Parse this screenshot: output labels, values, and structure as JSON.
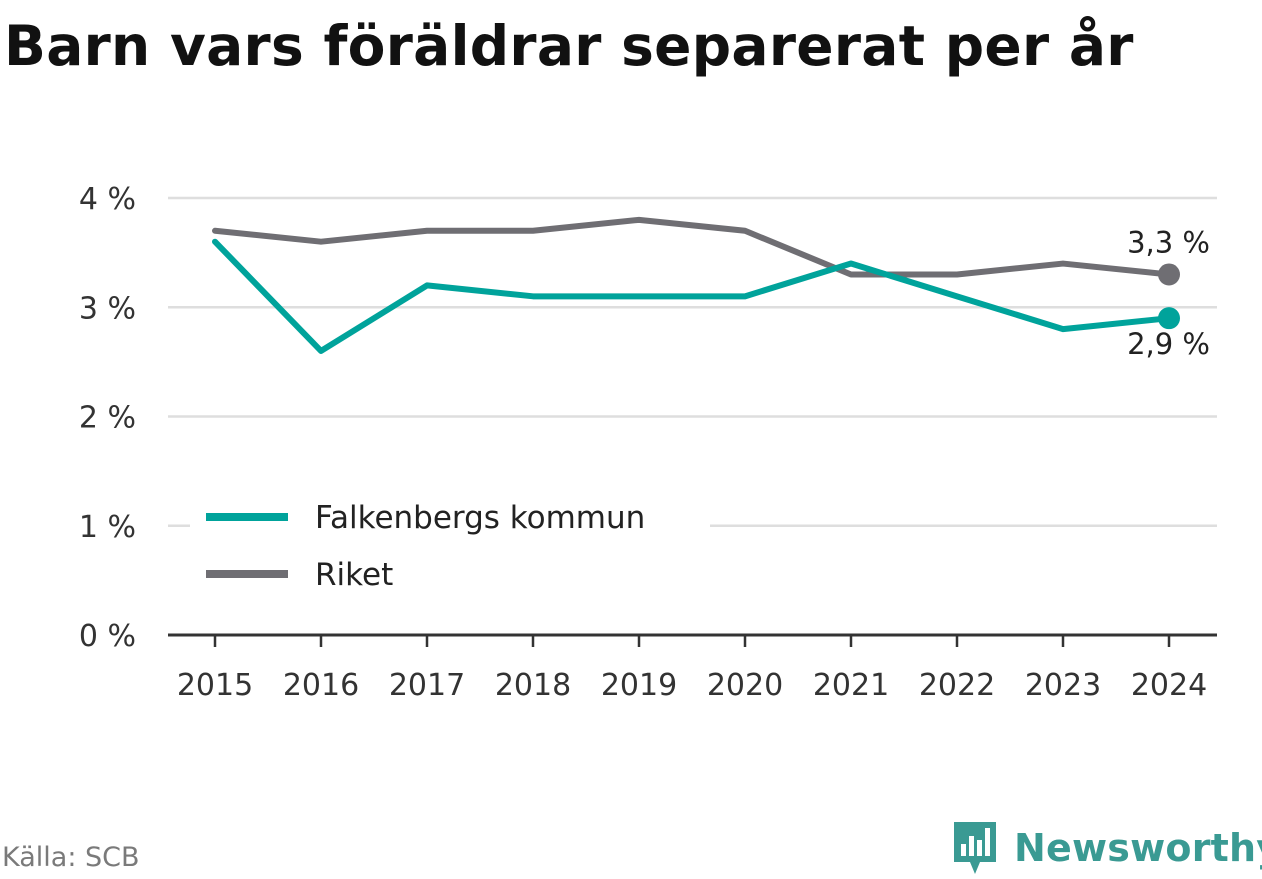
{
  "colors": {
    "falkenberg": "#00a39b",
    "riket": "#6f6e73",
    "grid": "#dedede",
    "axis": "#333333",
    "brand": "#3a9a93"
  },
  "logo": {
    "icon": "newsworthy-chart-bubble-icon",
    "text": "Newsworthy"
  },
  "source": "Källa: SCB",
  "chart_data": {
    "type": "line",
    "title": "Barn vars föräldrar separerat per år",
    "x": [
      "2015",
      "2016",
      "2017",
      "2018",
      "2019",
      "2020",
      "2021",
      "2022",
      "2023",
      "2024"
    ],
    "y_ticks": [
      0,
      1,
      2,
      3,
      4
    ],
    "y_tick_labels": [
      "0 %",
      "1 %",
      "2 %",
      "3 %",
      "4 %"
    ],
    "ylim": [
      0,
      4
    ],
    "grid": true,
    "legend_position": "bottom-left",
    "series": [
      {
        "name": "Falkenbergs kommun",
        "values": [
          3.6,
          2.6,
          3.2,
          3.1,
          3.1,
          3.1,
          3.4,
          3.1,
          2.8,
          2.9
        ],
        "end_label": "2,9 %"
      },
      {
        "name": "Riket",
        "values": [
          3.7,
          3.6,
          3.7,
          3.7,
          3.8,
          3.7,
          3.3,
          3.3,
          3.4,
          3.3
        ],
        "end_label": "3,3 %"
      }
    ]
  }
}
